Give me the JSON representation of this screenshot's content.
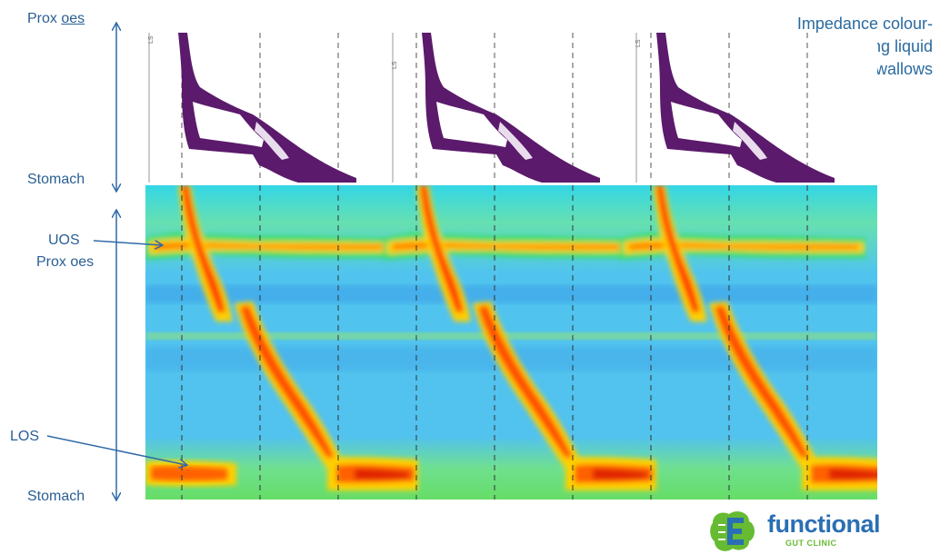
{
  "title_lines": [
    "Impedance colour-",
    "plots during liquid",
    "swallows"
  ],
  "labels": {
    "prox_oes_top": "Prox oes",
    "stomach_top": "Stomach",
    "uos": "UOS",
    "prox_oes_bottom": "Prox oes",
    "los": "LOS",
    "stomach_bottom": "Stomach"
  },
  "swallow_marker": "LS",
  "logo": {
    "word": "functional",
    "sub": "GUT CLINIC"
  },
  "colors": {
    "impedance": "#5b1a6b",
    "label": "#2a5f93",
    "arrow": "#2f6aa8",
    "logo_blue": "#2a6fb3",
    "logo_green": "#66bb33",
    "hrm_background": "#4ec8f0",
    "hrm_pressure_high": "#d62000"
  }
}
